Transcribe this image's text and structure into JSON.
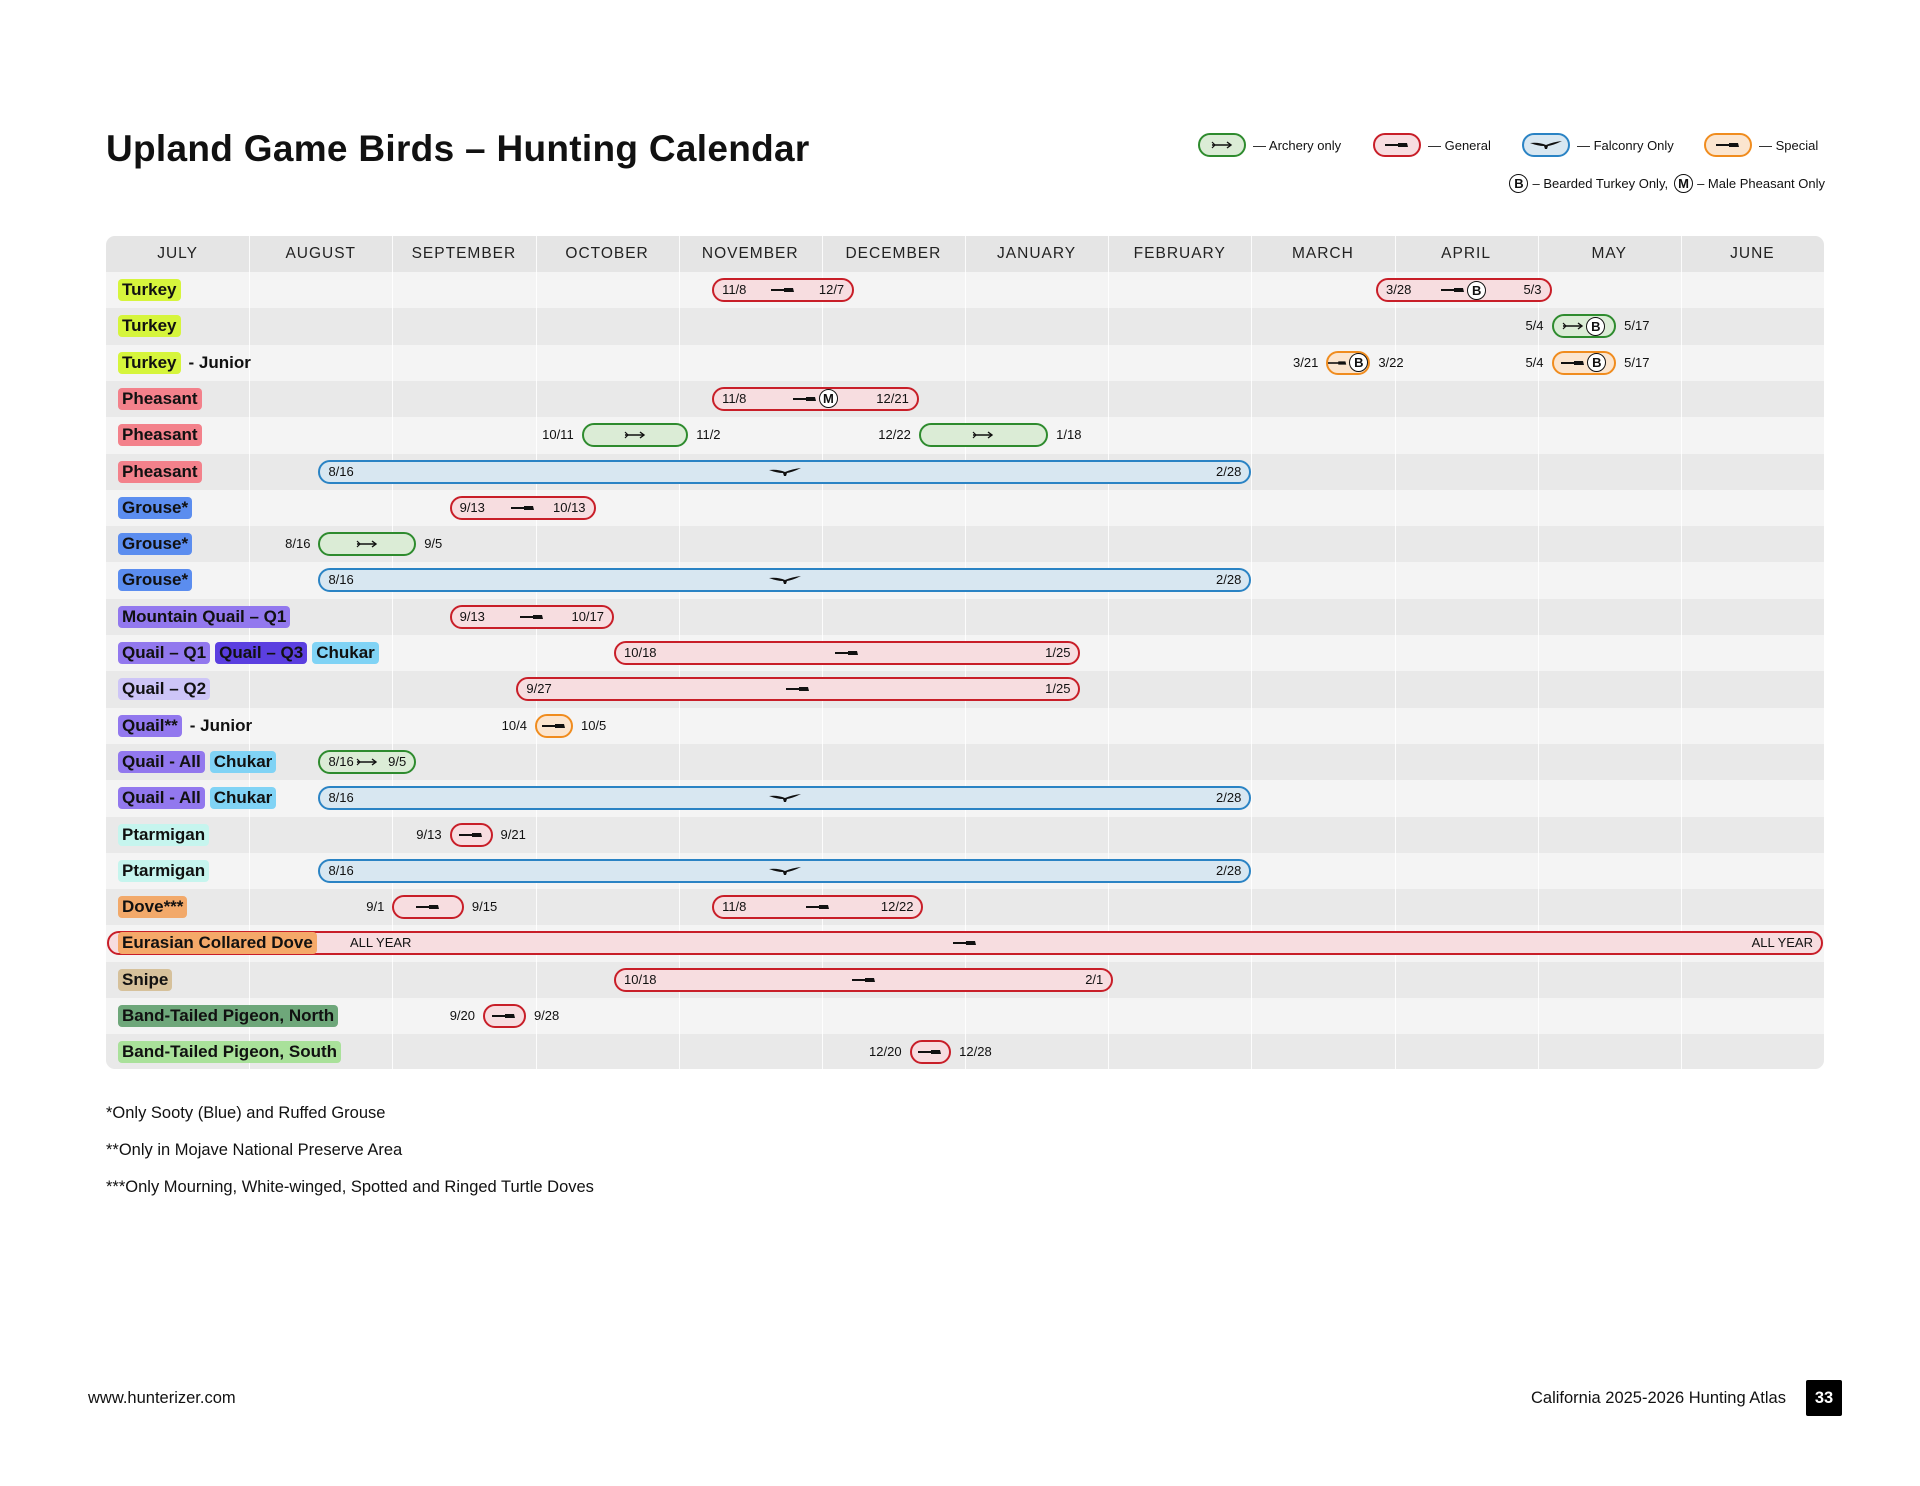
{
  "title": "Upland Game Birds – Hunting Calendar",
  "legend": {
    "items": [
      {
        "type": "archery",
        "label": "— Archery only",
        "icon": "arrow-icon"
      },
      {
        "type": "general",
        "label": "— General",
        "icon": "rifle-icon"
      },
      {
        "type": "falconry",
        "label": "— Falconry Only",
        "icon": "falcon-icon"
      },
      {
        "type": "special",
        "label": "— Special",
        "icon": "rifle-icon"
      }
    ],
    "badge_b": "B",
    "badge_b_text": "– Bearded Turkey Only,",
    "badge_m": "M",
    "badge_m_text": "– Male Pheasant Only"
  },
  "months": [
    "JULY",
    "AUGUST",
    "SEPTEMBER",
    "OCTOBER",
    "NOVEMBER",
    "DECEMBER",
    "JANUARY",
    "FEBRUARY",
    "MARCH",
    "APRIL",
    "MAY",
    "JUNE"
  ],
  "colors": {
    "general": "#c81e28",
    "archery": "#2e8b2e",
    "falconry": "#2a83c4",
    "special": "#f08c1e",
    "turkey": "#d6f53c",
    "pheasant": "#f3818b",
    "grouse": "#5b8def",
    "mountain_quail": "#9278ee",
    "quail_q3": "#5b3fe0",
    "chukar": "#80d3f5",
    "quail_q2": "#cdc5f7",
    "ptarmigan": "#c6f5ee",
    "dove": "#f2a96a",
    "eurasian_dove": "#f5a969",
    "snipe": "#d6c19b",
    "pigeon_north": "#6ea77a",
    "pigeon_south": "#a9e19a"
  },
  "rows": [
    {
      "labels": [
        {
          "text": "Turkey",
          "color": "turkey"
        }
      ],
      "suffix": "",
      "seasons": [
        {
          "type": "general",
          "start": "11/8",
          "end": "12/7",
          "s": "11/8",
          "e": "12/7",
          "dates": "inside",
          "icon": "rifle-icon"
        },
        {
          "type": "general",
          "start": "3/28",
          "end": "5/3",
          "s": "3/28",
          "e": "5/3",
          "dates": "inside",
          "icon": "rifle-icon",
          "badge": "B"
        }
      ]
    },
    {
      "labels": [
        {
          "text": "Turkey",
          "color": "turkey"
        }
      ],
      "suffix": "",
      "seasons": [
        {
          "type": "archery",
          "start": "5/4",
          "end": "5/17",
          "s": "5/4",
          "e": "5/17",
          "dates": "outside",
          "icon": "arrow-icon",
          "badge": "B"
        }
      ]
    },
    {
      "labels": [
        {
          "text": "Turkey",
          "color": "turkey"
        }
      ],
      "suffix": "- Junior",
      "seasons": [
        {
          "type": "special",
          "start": "3/21",
          "end": "3/22",
          "s": "3/21",
          "e": "3/22",
          "dates": "outside",
          "icon": "rifle-icon",
          "badge": "B"
        },
        {
          "type": "special",
          "start": "5/4",
          "end": "5/17",
          "s": "5/4",
          "e": "5/17",
          "dates": "outside",
          "icon": "rifle-icon",
          "badge": "B"
        }
      ]
    },
    {
      "labels": [
        {
          "text": "Pheasant",
          "color": "pheasant"
        }
      ],
      "suffix": "",
      "seasons": [
        {
          "type": "general",
          "start": "11/8",
          "end": "12/21",
          "s": "11/8",
          "e": "12/21",
          "dates": "inside",
          "icon": "rifle-icon",
          "badge": "M"
        }
      ]
    },
    {
      "labels": [
        {
          "text": "Pheasant",
          "color": "pheasant"
        }
      ],
      "suffix": "",
      "seasons": [
        {
          "type": "archery",
          "start": "10/11",
          "end": "11/2",
          "s": "10/11",
          "e": "11/2",
          "dates": "outside",
          "icon": "arrow-icon"
        },
        {
          "type": "archery",
          "start": "12/22",
          "end": "1/18",
          "s": "12/22",
          "e": "1/18",
          "dates": "outside",
          "icon": "arrow-icon"
        }
      ]
    },
    {
      "labels": [
        {
          "text": "Pheasant",
          "color": "pheasant"
        }
      ],
      "suffix": "",
      "seasons": [
        {
          "type": "falconry",
          "start": "8/16",
          "end": "2/28",
          "s": "8/16",
          "e": "2/28",
          "dates": "inside",
          "icon": "falcon-icon"
        }
      ]
    },
    {
      "labels": [
        {
          "text": "Grouse*",
          "color": "grouse"
        }
      ],
      "suffix": "",
      "seasons": [
        {
          "type": "general",
          "start": "9/13",
          "end": "10/13",
          "s": "9/13",
          "e": "10/13",
          "dates": "inside",
          "icon": "rifle-icon"
        }
      ]
    },
    {
      "labels": [
        {
          "text": "Grouse*",
          "color": "grouse"
        }
      ],
      "suffix": "",
      "seasons": [
        {
          "type": "archery",
          "start": "8/16",
          "end": "9/5",
          "s": "8/16",
          "e": "9/5",
          "dates": "outside",
          "icon": "arrow-icon"
        }
      ]
    },
    {
      "labels": [
        {
          "text": "Grouse*",
          "color": "grouse"
        }
      ],
      "suffix": "",
      "seasons": [
        {
          "type": "falconry",
          "start": "8/16",
          "end": "2/28",
          "s": "8/16",
          "e": "2/28",
          "dates": "inside",
          "icon": "falcon-icon"
        }
      ]
    },
    {
      "labels": [
        {
          "text": "Mountain Quail – Q1",
          "color": "mountain_quail"
        }
      ],
      "suffix": "",
      "seasons": [
        {
          "type": "general",
          "start": "9/13",
          "end": "10/17",
          "s": "9/13",
          "e": "10/17",
          "dates": "inside",
          "icon": "rifle-icon"
        }
      ]
    },
    {
      "labels": [
        {
          "text": "Quail – Q1",
          "color": "mountain_quail"
        },
        {
          "text": "Quail – Q3",
          "color": "quail_q3"
        },
        {
          "text": "Chukar",
          "color": "chukar"
        }
      ],
      "suffix": "",
      "seasons": [
        {
          "type": "general",
          "start": "10/18",
          "end": "1/25",
          "s": "10/18",
          "e": "1/25",
          "dates": "inside",
          "icon": "rifle-icon"
        }
      ]
    },
    {
      "labels": [
        {
          "text": "Quail – Q2",
          "color": "quail_q2"
        }
      ],
      "suffix": "",
      "seasons": [
        {
          "type": "general",
          "start": "9/27",
          "end": "1/25",
          "s": "9/27",
          "e": "1/25",
          "dates": "inside",
          "icon": "rifle-icon"
        }
      ]
    },
    {
      "labels": [
        {
          "text": "Quail**",
          "color": "mountain_quail"
        }
      ],
      "suffix": "- Junior",
      "seasons": [
        {
          "type": "special",
          "start": "10/4",
          "end": "10/5",
          "s": "10/4",
          "e": "10/5",
          "dates": "outside",
          "icon": "rifle-icon"
        }
      ]
    },
    {
      "labels": [
        {
          "text": "Quail  - All",
          "color": "mountain_quail"
        },
        {
          "text": "Chukar",
          "color": "chukar"
        }
      ],
      "suffix": "",
      "seasons": [
        {
          "type": "archery",
          "start": "8/16",
          "end": "9/5",
          "s": "8/16",
          "e": "9/5",
          "dates": "inside",
          "icon": "arrow-icon"
        }
      ]
    },
    {
      "labels": [
        {
          "text": "Quail - All",
          "color": "mountain_quail"
        },
        {
          "text": "Chukar",
          "color": "chukar"
        }
      ],
      "suffix": "",
      "seasons": [
        {
          "type": "falconry",
          "start": "8/16",
          "end": "2/28",
          "s": "8/16",
          "e": "2/28",
          "dates": "inside",
          "icon": "falcon-icon"
        }
      ]
    },
    {
      "labels": [
        {
          "text": "Ptarmigan",
          "color": "ptarmigan"
        }
      ],
      "suffix": "",
      "seasons": [
        {
          "type": "general",
          "start": "9/13",
          "end": "9/21",
          "s": "9/13",
          "e": "9/21",
          "dates": "outside",
          "icon": "rifle-icon"
        }
      ]
    },
    {
      "labels": [
        {
          "text": "Ptarmigan",
          "color": "ptarmigan"
        }
      ],
      "suffix": "",
      "seasons": [
        {
          "type": "falconry",
          "start": "8/16",
          "end": "2/28",
          "s": "8/16",
          "e": "2/28",
          "dates": "inside",
          "icon": "falcon-icon"
        }
      ]
    },
    {
      "labels": [
        {
          "text": "Dove***",
          "color": "dove"
        }
      ],
      "suffix": "",
      "seasons": [
        {
          "type": "general",
          "start": "9/1",
          "end": "9/15",
          "s": "9/1",
          "e": "9/15",
          "dates": "outside",
          "icon": "rifle-icon"
        },
        {
          "type": "general",
          "start": "11/8",
          "end": "12/22",
          "s": "11/8",
          "e": "12/22",
          "dates": "inside",
          "icon": "rifle-icon"
        }
      ]
    },
    {
      "labels": [
        {
          "text": "Eurasian Collared Dove",
          "color": "eurasian_dove"
        }
      ],
      "suffix": "",
      "seasons": [
        {
          "type": "general",
          "start": "7/1",
          "end": "6/30",
          "s": "ALL YEAR",
          "e": "ALL YEAR",
          "dates": "allyear",
          "icon": "rifle-icon"
        }
      ]
    },
    {
      "labels": [
        {
          "text": "Snipe",
          "color": "snipe"
        }
      ],
      "suffix": "",
      "seasons": [
        {
          "type": "general",
          "start": "10/18",
          "end": "2/1",
          "s": "10/18",
          "e": "2/1",
          "dates": "inside",
          "icon": "rifle-icon"
        }
      ]
    },
    {
      "labels": [
        {
          "text": "Band-Tailed Pigeon, North",
          "color": "pigeon_north"
        }
      ],
      "suffix": "",
      "seasons": [
        {
          "type": "general",
          "start": "9/20",
          "end": "9/28",
          "s": "9/20",
          "e": "9/28",
          "dates": "outside",
          "icon": "rifle-icon"
        }
      ]
    },
    {
      "labels": [
        {
          "text": "Band-Tailed Pigeon, South",
          "color": "pigeon_south"
        }
      ],
      "suffix": "",
      "seasons": [
        {
          "type": "general",
          "start": "12/20",
          "end": "12/28",
          "s": "12/20",
          "e": "12/28",
          "dates": "outside",
          "icon": "rifle-icon"
        }
      ]
    }
  ],
  "notes": [
    "*Only Sooty (Blue) and Ruffed Grouse",
    "**Only in Mojave National Preserve Area",
    "***Only Mourning, White-winged, Spotted and Ringed Turtle Doves"
  ],
  "footer": {
    "website": "www.hunterizer.com",
    "atlas": "California 2025-2026 Hunting Atlas",
    "page": "33"
  }
}
